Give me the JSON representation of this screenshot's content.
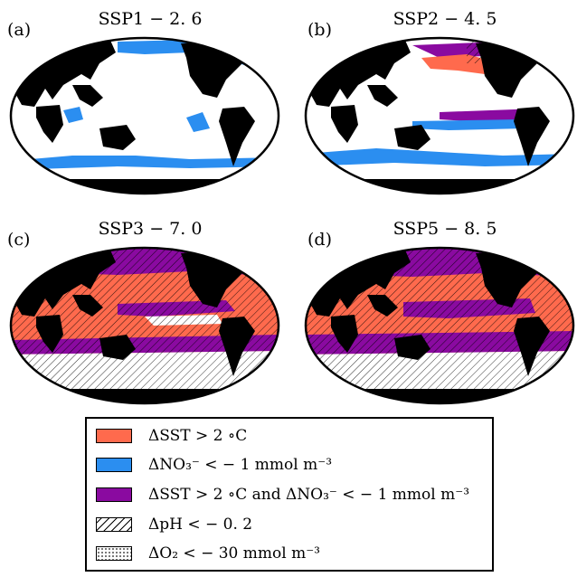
{
  "panels": [
    {
      "letter": "(a)",
      "title": "SSP1 − 2. 6"
    },
    {
      "letter": "(b)",
      "title": "SSP2 − 4. 5"
    },
    {
      "letter": "(c)",
      "title": "SSP3 − 7. 0"
    },
    {
      "letter": "(d)",
      "title": "SSP5 − 8. 5"
    }
  ],
  "legend": {
    "items": [
      {
        "label": "ΔSST > 2 ∘C"
      },
      {
        "label": "ΔNO₃⁻ < − 1 mmol m⁻³"
      },
      {
        "label": "ΔSST > 2 ∘C and ΔNO₃⁻ < − 1 mmol m⁻³"
      },
      {
        "label": "ΔpH < − 0. 2"
      },
      {
        "label": "ΔO₂ < − 30 mmol m⁻³"
      }
    ]
  },
  "colors": {
    "sst": "#ff6a4d",
    "no3": "#2b8ef0",
    "both": "#8a0aa0",
    "land": "#000000",
    "ocean": "#ffffff"
  }
}
